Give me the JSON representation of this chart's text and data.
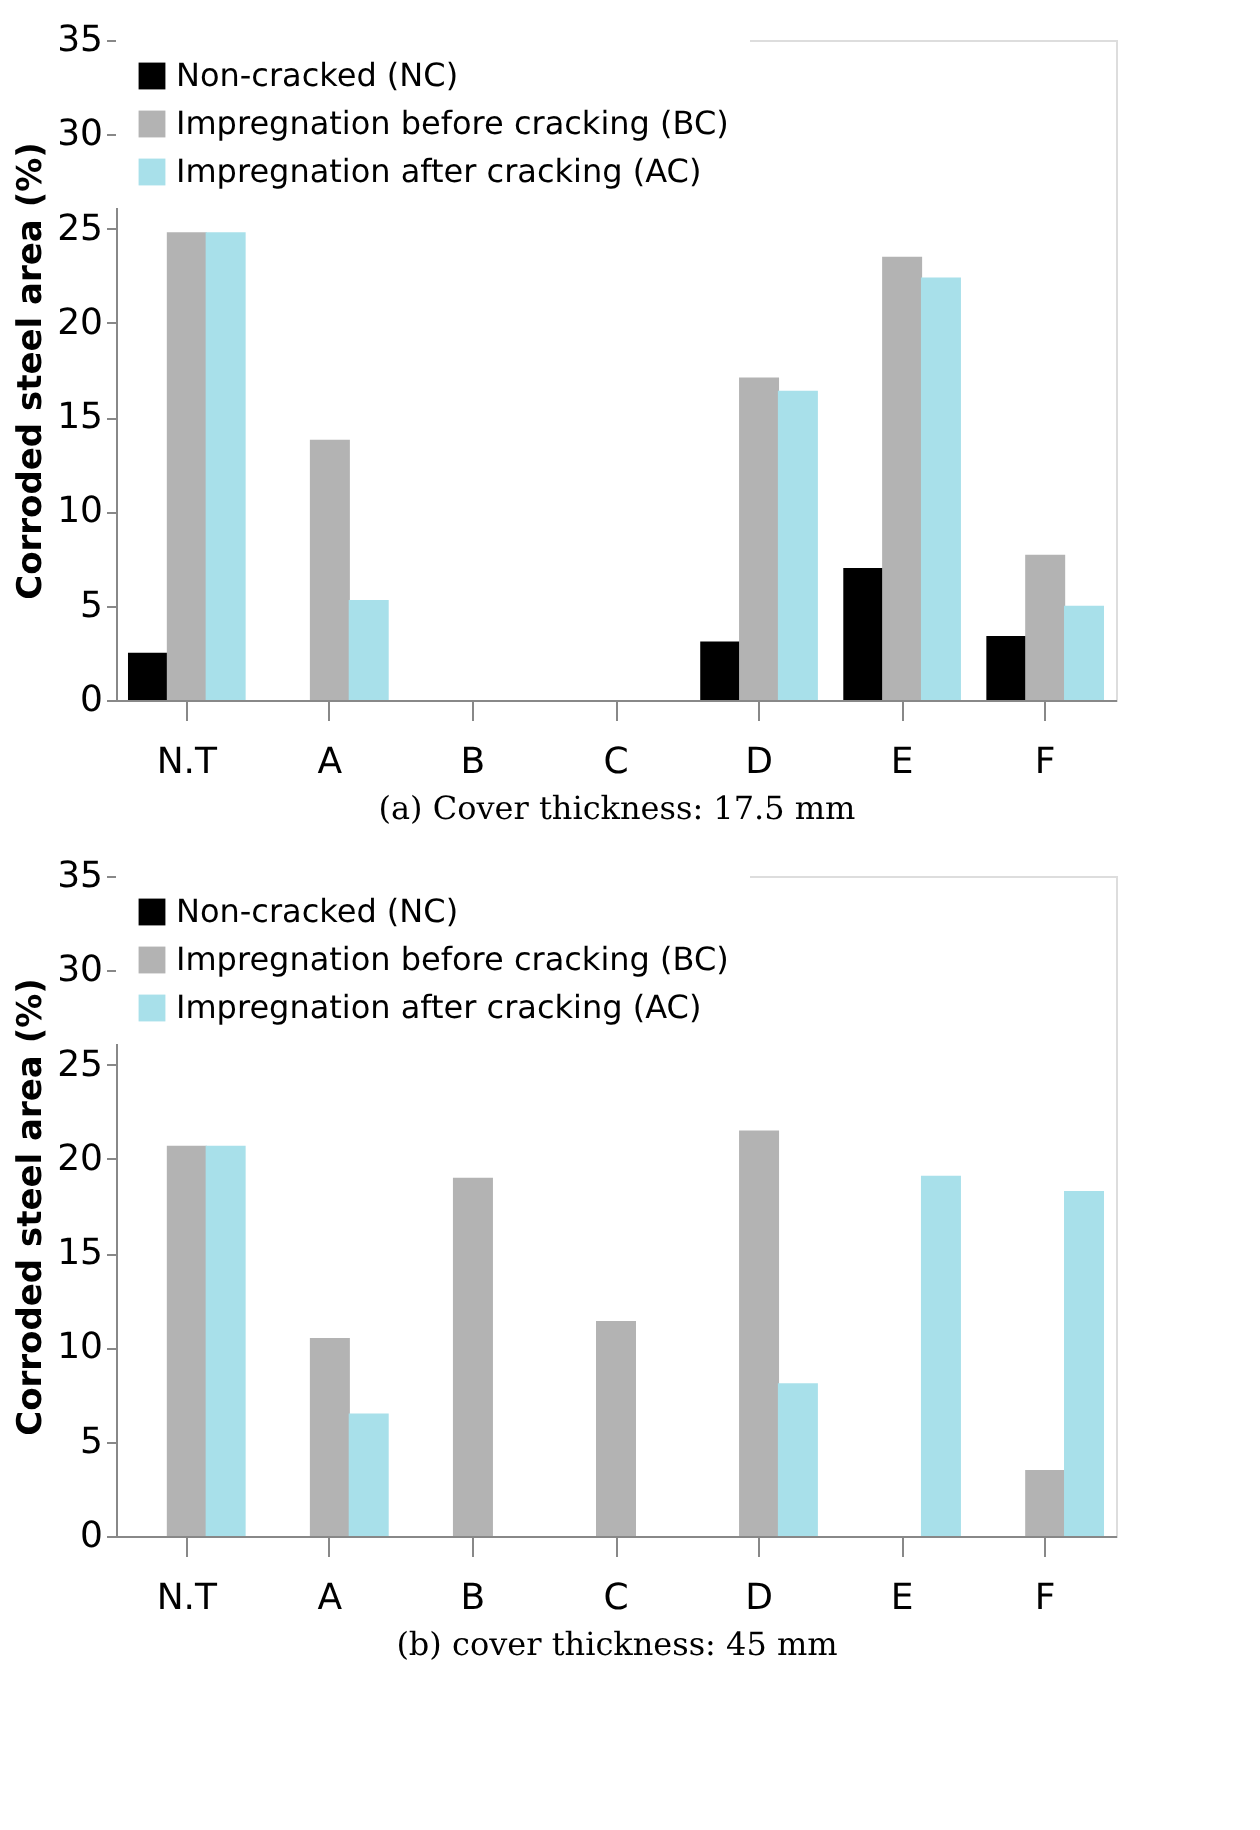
{
  "chart_data": [
    {
      "type": "bar",
      "xlabel": "(a)  Cover thickness: 17.5 mm",
      "ylabel": "Corroded steel area (%)",
      "categories": [
        "N.T",
        "A",
        "B",
        "C",
        "D",
        "E",
        "F"
      ],
      "ylim": [
        0,
        35
      ],
      "yticks": [
        0,
        5,
        10,
        15,
        20,
        25,
        30,
        35
      ],
      "grid": false,
      "legend": "top",
      "series": [
        {
          "name": "Non-cracked (NC)",
          "color": "#000000",
          "values": [
            2.5,
            0,
            0,
            0,
            3.1,
            7.0,
            3.4
          ]
        },
        {
          "name": "Impregnation before cracking (BC)",
          "color": "#b3b3b3",
          "values": [
            24.8,
            13.8,
            0,
            0,
            17.1,
            23.5,
            7.7
          ]
        },
        {
          "name": "Impregnation after cracking (AC)",
          "color": "#a8e0ea",
          "values": [
            24.8,
            5.3,
            0,
            0,
            16.4,
            22.4,
            5.0
          ]
        }
      ]
    },
    {
      "type": "bar",
      "xlabel": "(b)  cover thickness: 45 mm",
      "ylabel": "Corroded steel area (%)",
      "categories": [
        "N.T",
        "A",
        "B",
        "C",
        "D",
        "E",
        "F"
      ],
      "ylim": [
        0,
        35
      ],
      "yticks": [
        0,
        5,
        10,
        15,
        20,
        25,
        30,
        35
      ],
      "grid": false,
      "legend": "top",
      "series": [
        {
          "name": "Non-cracked (NC)",
          "color": "#000000",
          "values": [
            0,
            0,
            0,
            0,
            0,
            0,
            0
          ]
        },
        {
          "name": "Impregnation before cracking (BC)",
          "color": "#b3b3b3",
          "values": [
            20.7,
            10.5,
            19.0,
            11.4,
            21.5,
            0,
            3.5
          ]
        },
        {
          "name": "Impregnation after cracking (AC)",
          "color": "#a8e0ea",
          "values": [
            20.7,
            6.5,
            0,
            0,
            8.1,
            19.1,
            18.3
          ]
        }
      ]
    }
  ]
}
